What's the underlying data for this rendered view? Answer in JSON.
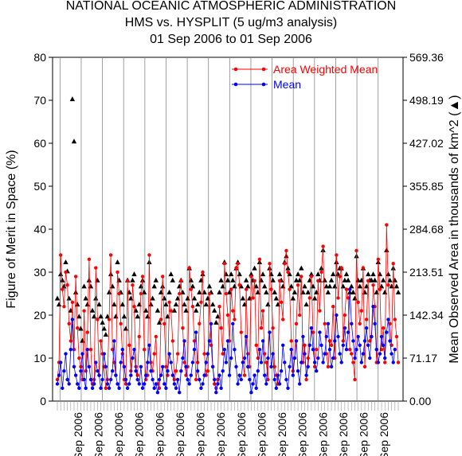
{
  "chart_data": {
    "type": "line",
    "title": "NATIONAL OCEANIC ATMOSPHERIC ADMINISTRATION",
    "subtitle": "HMS vs. HYSPLIT (5 ug/m3 analysis)",
    "date_range": "01 Sep 2006 to 01 Sep 2006",
    "ylabel": "Figure of Merit in Space (%)",
    "ylabel_right": "Mean Observed Area in thousands of km^2 (▲)",
    "ylim": [
      0,
      80
    ],
    "y_ticks": [
      "0",
      "10",
      "20",
      "30",
      "40",
      "50",
      "60",
      "70",
      "80"
    ],
    "y2lim": [
      0,
      569.36
    ],
    "y2_ticks": [
      "0.00",
      "71.17",
      "142.34",
      "213.51",
      "284.68",
      "355.85",
      "427.02",
      "498.19",
      "569.36"
    ],
    "x_tick_labels": [
      "Sep 2006",
      "Sep 2006",
      "Sep 2006",
      "Sep 2006",
      "Sep 2006",
      "Sep 2006",
      "Sep 2006",
      "Sep 2006",
      "Sep 2006",
      "Sep 2006",
      "Sep 2006",
      "Sep 2006",
      "Sep 2006",
      "Sep 2006",
      "Sep 2006",
      "Sep 2006"
    ],
    "legend_position": "top-right",
    "grid": false,
    "colors": {
      "area_weighted_mean": "#ff0000",
      "mean": "#0000ff",
      "observed_area": "#000000"
    },
    "series": [
      {
        "name": "Area Weighted Mean",
        "values": [
          5,
          9,
          34,
          26,
          22,
          30,
          27,
          18,
          14,
          23,
          12,
          29,
          17,
          10,
          8,
          5,
          21,
          7,
          16,
          33,
          12,
          4,
          5,
          31,
          19,
          6,
          14,
          11,
          8,
          3,
          5,
          19,
          34,
          12,
          9,
          6,
          30,
          25,
          18,
          11,
          5,
          4,
          28,
          13,
          7,
          27,
          22,
          8,
          6,
          15,
          25,
          29,
          12,
          5,
          6,
          34,
          9,
          7,
          11,
          15,
          4,
          3,
          19,
          29,
          18,
          8,
          6,
          23,
          21,
          14,
          5,
          7,
          11,
          25,
          28,
          17,
          9,
          6,
          8,
          31,
          26,
          22,
          14,
          5,
          9,
          18,
          23,
          30,
          11,
          6,
          7,
          25,
          13,
          8,
          4,
          3,
          5,
          22,
          17,
          11,
          32,
          25,
          20,
          14,
          26,
          21,
          19,
          31,
          32,
          27,
          16,
          9,
          6,
          26,
          11,
          8,
          29,
          24,
          28,
          13,
          10,
          33,
          17,
          21,
          11,
          9,
          5,
          32,
          26,
          17,
          8,
          6,
          4,
          28,
          23,
          19,
          32,
          35,
          30,
          26,
          14,
          7,
          10,
          18,
          27,
          20,
          29,
          9,
          13,
          5,
          10,
          24,
          29,
          16,
          8,
          12,
          28,
          21,
          30,
          36,
          18,
          11,
          8,
          14,
          13,
          22,
          10,
          34,
          24,
          29,
          31,
          14,
          20,
          26,
          24,
          12,
          11,
          9,
          5,
          35,
          23,
          18,
          21,
          31,
          8,
          19,
          28,
          14,
          15,
          27,
          22,
          9,
          33,
          26,
          12,
          17,
          9,
          41,
          27,
          18,
          13,
          32,
          19,
          15,
          9
        ]
      },
      {
        "name": "Mean",
        "values": [
          4,
          6,
          9,
          3,
          7,
          11,
          5,
          4,
          12,
          19,
          8,
          6,
          4,
          3,
          7,
          11,
          5,
          3,
          12,
          8,
          5,
          3,
          4,
          9,
          7,
          6,
          3,
          5,
          11,
          8,
          4,
          3,
          5,
          7,
          14,
          6,
          4,
          3,
          9,
          12,
          8,
          5,
          3,
          4,
          6,
          10,
          12,
          7,
          5,
          4,
          8,
          3,
          4,
          6,
          9,
          13,
          7,
          5,
          3,
          4,
          2,
          5,
          6,
          8,
          4,
          3,
          7,
          11,
          9,
          6,
          4,
          3,
          5,
          2,
          7,
          10,
          14,
          8,
          5,
          4,
          6,
          9,
          12,
          16,
          7,
          5,
          3,
          4,
          6,
          9,
          11,
          14,
          18,
          8,
          5,
          2,
          4,
          6,
          3,
          7,
          12,
          9,
          14,
          6,
          10,
          18,
          12,
          8,
          4,
          6,
          5,
          9,
          10,
          15,
          8,
          5,
          2,
          4,
          6,
          3,
          7,
          12,
          9,
          14,
          6,
          4,
          10,
          16,
          8,
          11,
          5,
          3,
          6,
          4,
          7,
          13,
          9,
          5,
          3,
          8,
          12,
          6,
          10,
          14,
          7,
          4,
          9,
          15,
          11,
          6,
          8,
          13,
          17,
          12,
          9,
          7,
          10,
          16,
          13,
          9,
          11,
          15,
          18,
          12,
          8,
          10,
          14,
          20,
          15,
          11,
          9,
          13,
          17,
          12,
          16,
          26,
          18,
          14,
          10,
          12,
          15,
          13,
          9,
          11,
          14,
          17,
          13,
          10,
          15,
          22,
          18,
          12,
          9,
          11,
          15,
          13,
          10,
          16,
          19,
          14,
          11,
          9,
          12
        ]
      },
      {
        "name": "Observed Area",
        "axis": "right",
        "values": [
          170,
          160,
          210,
          200,
          190,
          230,
          215,
          170,
          150,
          500,
          430,
          180,
          160,
          140,
          120,
          100,
          190,
          170,
          160,
          200,
          190,
          150,
          140,
          170,
          200,
          160,
          140,
          130,
          120,
          110,
          140,
          180,
          210,
          190,
          160,
          140,
          230,
          200,
          180,
          160,
          140,
          120,
          200,
          180,
          170,
          200,
          210,
          150,
          140,
          160,
          190,
          200,
          180,
          150,
          140,
          230,
          160,
          170,
          190,
          200,
          150,
          130,
          180,
          190,
          170,
          160,
          140,
          180,
          210,
          200,
          150,
          160,
          170,
          190,
          200,
          180,
          160,
          150,
          170,
          220,
          200,
          190,
          170,
          150,
          160,
          180,
          200,
          210,
          180,
          160,
          170,
          190,
          180,
          160,
          150,
          130,
          140,
          180,
          200,
          190,
          230,
          210,
          200,
          180,
          210,
          200,
          190,
          220,
          230,
          210,
          190,
          170,
          160,
          200,
          190,
          170,
          210,
          200,
          220,
          190,
          180,
          230,
          200,
          210,
          190,
          180,
          160,
          220,
          210,
          200,
          180,
          170,
          160,
          210,
          200,
          190,
          230,
          240,
          220,
          210,
          190,
          170,
          180,
          200,
          210,
          200,
          220,
          180,
          190,
          160,
          180,
          200,
          210,
          190,
          170,
          180,
          210,
          200,
          220,
          250,
          200,
          190,
          180,
          190,
          200,
          210,
          190,
          230,
          210,
          220,
          220,
          190,
          200,
          210,
          200,
          180,
          190,
          180,
          170,
          240,
          200,
          190,
          200,
          220,
          180,
          190,
          210,
          200,
          200,
          210,
          200,
          180,
          230,
          210,
          190,
          200,
          180,
          250,
          210,
          200,
          190,
          220,
          200,
          190,
          180
        ]
      }
    ]
  }
}
